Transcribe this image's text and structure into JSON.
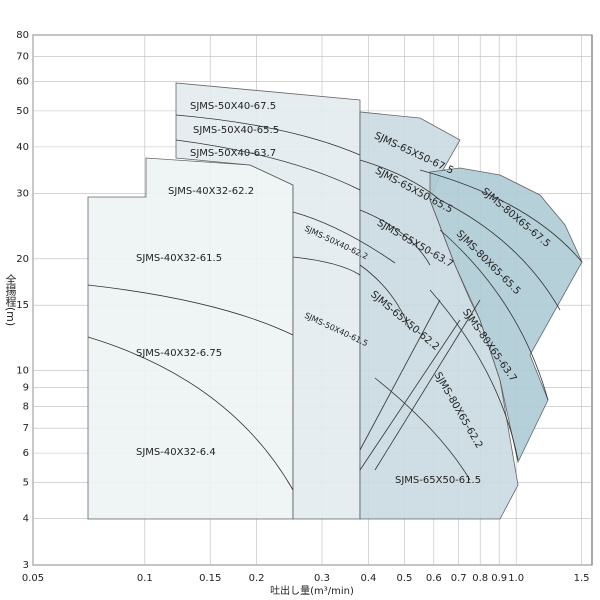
{
  "chart_data": {
    "type": "area",
    "xlabel": "吐出し量(m³/min)",
    "ylabel": "全揚程(m)",
    "xscale": "log",
    "yscale": "log",
    "grid": true,
    "xlim": [
      0.05,
      1.6
    ],
    "ylim": [
      3,
      80
    ],
    "xticks": [
      0.05,
      0.1,
      0.15,
      0.2,
      0.3,
      0.4,
      0.5,
      0.6,
      0.7,
      0.8,
      0.9,
      {
        "value": 1.0,
        "label": "1.0"
      },
      1.5
    ],
    "yticks": [
      3,
      4,
      5,
      6,
      7,
      8,
      9,
      10,
      15,
      20,
      30,
      40,
      50,
      60,
      70,
      80
    ],
    "labels": [
      "SJMS-50X40-67.5",
      "SJMS-50X40-65.5",
      "SJMS-50X40-63.7",
      "SJMS-40X32-62.2",
      "SJMS-40X32-61.5",
      "SJMS-40X32-6.75",
      "SJMS-40X32-6.4",
      "SJMS-50X40-62.2",
      "SJMS-50X40-61.5",
      "SJMS-65X50-67.5",
      "SJMS-65X50-65.5",
      "SJMS-65X50-63.7",
      "SJMS-65X50-62.2",
      "SJMS-65X50-61.5",
      "SJMS-80X65-67.5",
      "SJMS-80X65-65.5",
      "SJMS-80X65-63.7",
      "SJMS-80X65-62.2"
    ]
  }
}
